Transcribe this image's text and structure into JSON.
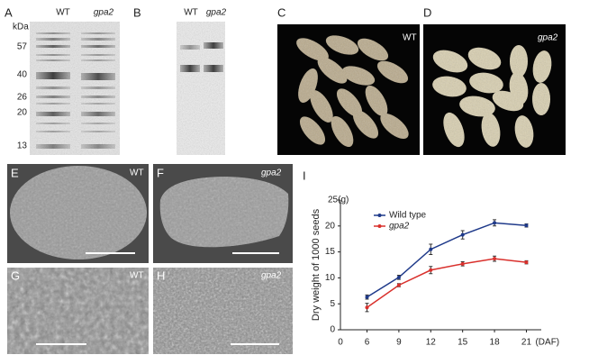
{
  "panels": {
    "A": {
      "label": "A",
      "lanes": [
        "WT",
        "gpa2"
      ],
      "unit": "kDa",
      "markers": [
        57,
        40,
        26,
        20,
        13
      ]
    },
    "B": {
      "label": "B",
      "lanes": [
        "WT",
        "gpa2"
      ]
    },
    "C": {
      "label": "C",
      "tag": "WT"
    },
    "D": {
      "label": "D",
      "tag": "gpa2"
    },
    "E": {
      "label": "E",
      "tag": "WT"
    },
    "F": {
      "label": "F",
      "tag": "gpa2"
    },
    "G": {
      "label": "G",
      "tag": "WT"
    },
    "H": {
      "label": "H",
      "tag": "gpa2"
    },
    "I": {
      "label": "I"
    }
  },
  "chart_data": {
    "type": "line",
    "y_label": "Dry weight of 1000 seeds",
    "x_origin_label": "0",
    "x_unit": "(DAF)",
    "x": [
      6,
      9,
      12,
      15,
      18,
      21
    ],
    "series": [
      {
        "name": "Wild type",
        "color": "#1f3a8a",
        "values": [
          6.3,
          10.1,
          15.5,
          18.3,
          20.6,
          20.1
        ],
        "errors": [
          0.4,
          0.4,
          1.0,
          0.8,
          0.6,
          0.3
        ]
      },
      {
        "name": "gpa2",
        "color": "#d9302c",
        "values": [
          4.3,
          8.6,
          11.5,
          12.7,
          13.7,
          13.0
        ],
        "errors": [
          0.8,
          0.3,
          0.7,
          0.4,
          0.5,
          0.3
        ]
      }
    ],
    "xlim": [
      3.5,
      22.4
    ],
    "ylim": [
      0,
      25
    ],
    "xticks": [
      6,
      9,
      12,
      15,
      18,
      21
    ],
    "yticks": [
      0,
      5,
      10,
      15,
      20,
      {
        "value": 25,
        "label": "25(g)"
      }
    ]
  }
}
